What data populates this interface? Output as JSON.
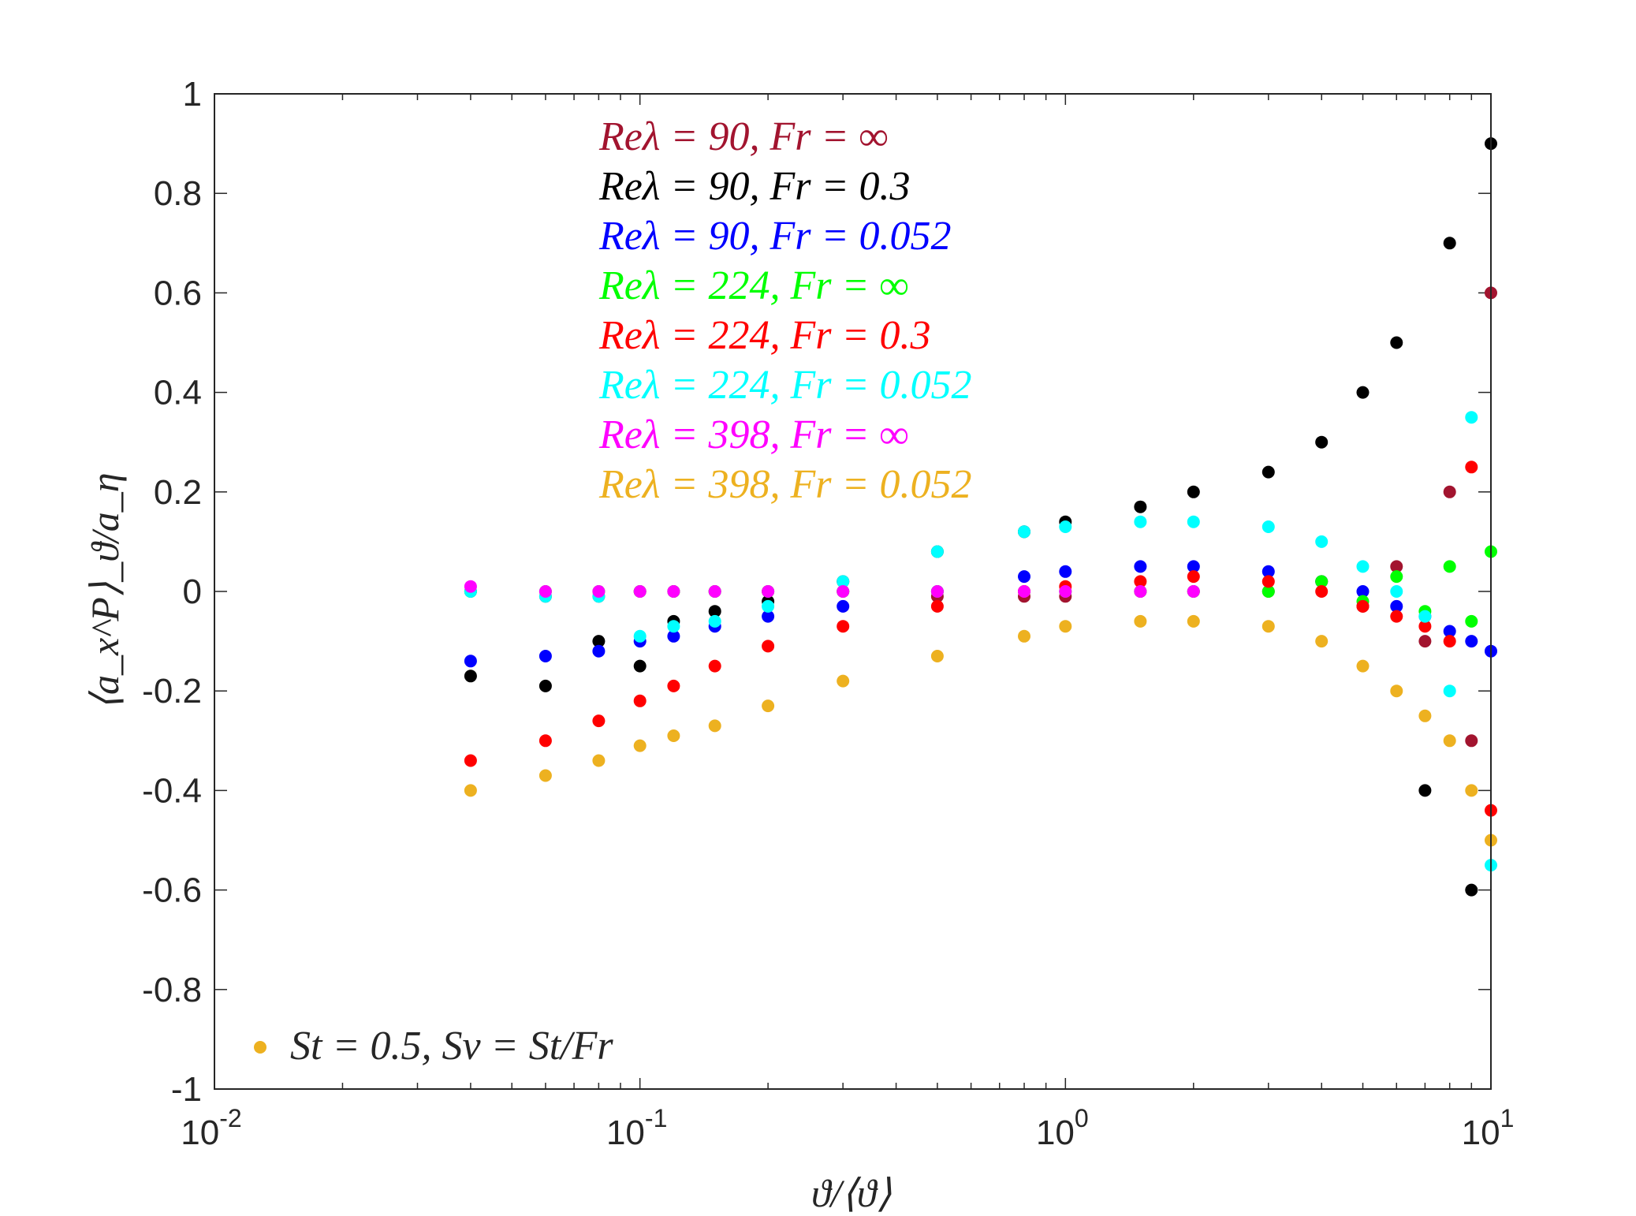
{
  "chart_data": {
    "type": "scatter",
    "xscale": "log",
    "xlim": [
      0.01,
      10
    ],
    "ylim": [
      -1,
      1
    ],
    "xlabel": "ϑ/⟨ϑ⟩",
    "ylabel": "⟨a_x^P⟩_ϑ/a_η",
    "x_ticks": [
      {
        "base": "10",
        "exp": "-2"
      },
      {
        "base": "10",
        "exp": "-1"
      },
      {
        "base": "10",
        "exp": "0"
      },
      {
        "base": "10",
        "exp": "1"
      }
    ],
    "y_ticks": [
      "-1",
      "-0.8",
      "-0.6",
      "-0.4",
      "-0.2",
      "0",
      "0.2",
      "0.4",
      "0.6",
      "0.8",
      "1"
    ],
    "note": "St = 0.5, Sv = St/Fr",
    "note_color": "#EDB120",
    "series": [
      {
        "name": "Reλ = 90, Fr = ∞",
        "color": "#A2142F",
        "x": [
          0.04,
          0.06,
          0.08,
          0.1,
          0.12,
          0.15,
          0.2,
          0.3,
          0.5,
          0.8,
          1.0,
          1.5,
          2.0,
          3.0,
          4.0,
          5.0,
          6.0,
          7.0,
          8.0,
          9.0,
          10.0
        ],
        "y": [
          0.0,
          -0.01,
          -0.01,
          0.0,
          0.0,
          0.0,
          0.0,
          0.0,
          -0.01,
          -0.01,
          -0.01,
          0.0,
          0.0,
          0.0,
          0.02,
          -0.03,
          0.05,
          -0.1,
          0.2,
          -0.3,
          0.6
        ]
      },
      {
        "name": "Reλ = 90, Fr = 0.3",
        "color": "#000000",
        "x": [
          0.04,
          0.06,
          0.08,
          0.1,
          0.12,
          0.15,
          0.2,
          0.3,
          0.5,
          0.8,
          1.0,
          1.5,
          2.0,
          3.0,
          4.0,
          5.0,
          6.0,
          7.0,
          8.0,
          9.0,
          10.0
        ],
        "y": [
          -0.17,
          -0.19,
          -0.1,
          -0.15,
          -0.06,
          -0.04,
          -0.02,
          0.02,
          0.08,
          0.12,
          0.14,
          0.17,
          0.2,
          0.24,
          0.3,
          0.4,
          0.5,
          -0.4,
          0.7,
          -0.6,
          0.9
        ]
      },
      {
        "name": "Reλ = 90, Fr = 0.052",
        "color": "#0000FF",
        "x": [
          0.04,
          0.06,
          0.08,
          0.1,
          0.12,
          0.15,
          0.2,
          0.3,
          0.5,
          0.8,
          1.0,
          1.5,
          2.0,
          3.0,
          4.0,
          5.0,
          6.0,
          7.0,
          8.0,
          9.0,
          10.0
        ],
        "y": [
          -0.14,
          -0.13,
          -0.12,
          -0.1,
          -0.09,
          -0.07,
          -0.05,
          -0.03,
          0.0,
          0.03,
          0.04,
          0.05,
          0.05,
          0.04,
          0.02,
          0.0,
          -0.03,
          -0.05,
          -0.08,
          -0.1,
          -0.12
        ]
      },
      {
        "name": "Reλ = 224, Fr = ∞",
        "color": "#00FF00",
        "x": [
          0.04,
          0.06,
          0.08,
          0.1,
          0.12,
          0.15,
          0.2,
          0.3,
          0.5,
          0.8,
          1.0,
          1.5,
          2.0,
          3.0,
          4.0,
          5.0,
          6.0,
          7.0,
          8.0,
          9.0,
          10.0
        ],
        "y": [
          0.0,
          0.0,
          0.0,
          0.0,
          0.0,
          0.0,
          0.0,
          0.0,
          0.0,
          0.0,
          0.0,
          0.0,
          0.0,
          0.0,
          0.02,
          -0.02,
          0.03,
          -0.04,
          0.05,
          -0.06,
          0.08
        ]
      },
      {
        "name": "Reλ = 224, Fr = 0.3",
        "color": "#FF0000",
        "x": [
          0.04,
          0.06,
          0.08,
          0.1,
          0.12,
          0.15,
          0.2,
          0.3,
          0.5,
          0.8,
          1.0,
          1.5,
          2.0,
          3.0,
          4.0,
          5.0,
          6.0,
          7.0,
          8.0,
          9.0,
          10.0
        ],
        "y": [
          -0.34,
          -0.3,
          -0.26,
          -0.22,
          -0.19,
          -0.15,
          -0.11,
          -0.07,
          -0.03,
          0.0,
          0.01,
          0.02,
          0.03,
          0.02,
          0.0,
          -0.03,
          -0.05,
          -0.07,
          -0.1,
          0.25,
          -0.44
        ]
      },
      {
        "name": "Reλ = 224, Fr = 0.052",
        "color": "#00FFFF",
        "x": [
          0.04,
          0.06,
          0.08,
          0.1,
          0.12,
          0.15,
          0.2,
          0.3,
          0.5,
          0.8,
          1.0,
          1.5,
          2.0,
          3.0,
          4.0,
          5.0,
          6.0,
          7.0,
          8.0,
          9.0,
          10.0
        ],
        "y": [
          0.0,
          -0.01,
          -0.01,
          -0.09,
          -0.07,
          -0.06,
          -0.03,
          0.02,
          0.08,
          0.12,
          0.13,
          0.14,
          0.14,
          0.13,
          0.1,
          0.05,
          0.0,
          -0.05,
          -0.2,
          0.35,
          -0.55
        ]
      },
      {
        "name": "Reλ = 398, Fr = ∞",
        "color": "#FF00FF",
        "x": [
          0.04,
          0.06,
          0.08,
          0.1,
          0.12,
          0.15,
          0.2,
          0.3,
          0.5,
          0.8,
          1.0,
          1.5,
          2.0
        ],
        "y": [
          0.01,
          0.0,
          0.0,
          0.0,
          0.0,
          0.0,
          0.0,
          0.0,
          0.0,
          0.0,
          0.0,
          0.0,
          0.0
        ]
      },
      {
        "name": "Reλ = 398, Fr = 0.052",
        "color": "#EDB120",
        "x": [
          0.04,
          0.06,
          0.08,
          0.1,
          0.12,
          0.15,
          0.2,
          0.3,
          0.5,
          0.8,
          1.0,
          1.5,
          2.0,
          3.0,
          4.0,
          5.0,
          6.0,
          7.0,
          8.0,
          9.0,
          10.0
        ],
        "y": [
          -0.4,
          -0.37,
          -0.34,
          -0.31,
          -0.29,
          -0.27,
          -0.23,
          -0.18,
          -0.13,
          -0.09,
          -0.07,
          -0.06,
          -0.06,
          -0.07,
          -0.1,
          -0.15,
          -0.2,
          -0.25,
          -0.3,
          -0.4,
          -0.5
        ]
      }
    ]
  }
}
